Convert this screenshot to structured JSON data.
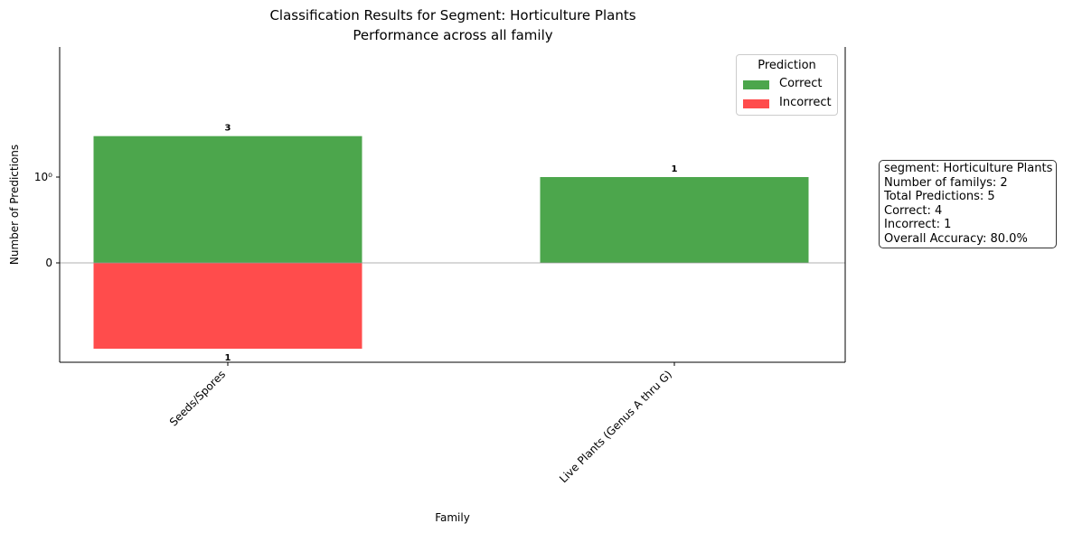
{
  "chart_data": {
    "type": "bar",
    "title": "Classification Results for Segment: Horticulture Plants",
    "subtitle": "Performance across all family",
    "xlabel": "Family",
    "ylabel": "Number of Predictions",
    "yscale": "symlog",
    "y_tick_labels": [
      "0",
      "10⁰"
    ],
    "categories": [
      "Seeds/Spores",
      "Live Plants (Genus A thru G)"
    ],
    "series": [
      {
        "name": "Correct",
        "color": "#4ca64c",
        "values": [
          3,
          1
        ],
        "direction": "up"
      },
      {
        "name": "Incorrect",
        "color": "#ff4c4c",
        "values": [
          1,
          0
        ],
        "direction": "down"
      }
    ],
    "data_labels": {
      "correct": [
        "3",
        "1"
      ],
      "incorrect": [
        "1",
        ""
      ]
    },
    "legend": {
      "title": "Prediction",
      "placement": "top-right",
      "entries": [
        "Correct",
        "Incorrect"
      ]
    },
    "grid": false,
    "zero_line": true
  },
  "info_box": {
    "lines": [
      "segment: Horticulture Plants",
      "Number of familys: 2",
      "Total Predictions: 5",
      "Correct: 4",
      "Incorrect: 1",
      "Overall Accuracy: 80.0%"
    ]
  }
}
